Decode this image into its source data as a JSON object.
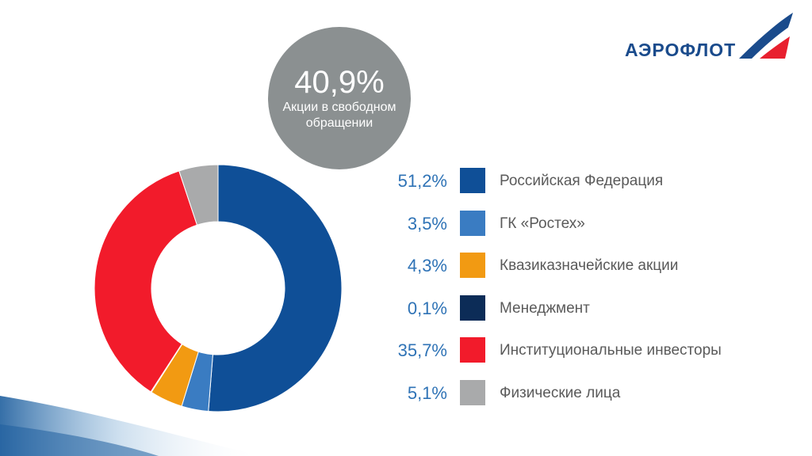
{
  "brand": {
    "name": "АЭРОФЛОТ"
  },
  "free_float": {
    "value": "40,9%",
    "label": "Акции в свободном обращении"
  },
  "chart_data": {
    "type": "pie",
    "donut": true,
    "slices": [
      {
        "label": "Российская Федерация",
        "value": 51.2,
        "value_label": "51,2%",
        "color": "#0f4f97"
      },
      {
        "label": "ГК «Ростех»",
        "value": 3.5,
        "value_label": "3,5%",
        "color": "#3a7cc2"
      },
      {
        "label": "Квазиказначейские акции",
        "value": 4.3,
        "value_label": "4,3%",
        "color": "#f29a12"
      },
      {
        "label": "Менеджмент",
        "value": 0.1,
        "value_label": "0,1%",
        "color": "#0c2c57"
      },
      {
        "label": "Институциональные инвесторы",
        "value": 35.7,
        "value_label": "35,7%",
        "color": "#f21b2b"
      },
      {
        "label": "Физические лица",
        "value": 5.1,
        "value_label": "5,1%",
        "color": "#a9aaab"
      }
    ],
    "legend_placement": "right"
  }
}
